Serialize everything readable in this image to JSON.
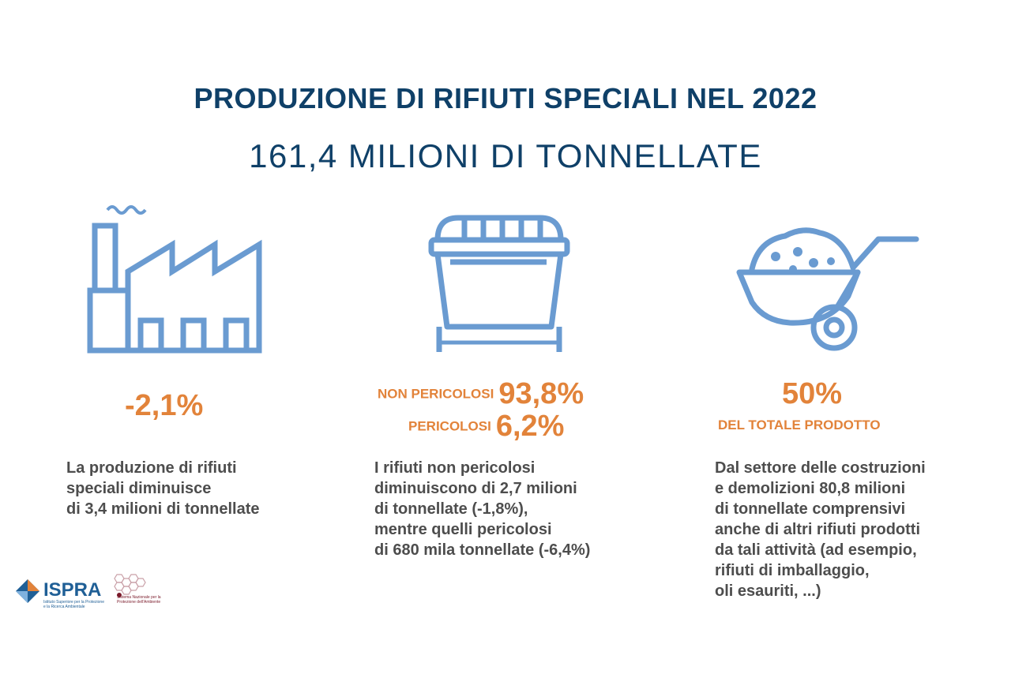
{
  "header": {
    "title": "PRODUZIONE DI RIFIUTI SPECIALI NEL 2022",
    "subtitle": "161,4 MILIONI DI TONNELLATE"
  },
  "colors": {
    "navy": "#0f4068",
    "icon_blue": "#6a9bd1",
    "accent_orange": "#e2833a",
    "text_gray": "#4d4d4d"
  },
  "column1": {
    "icon": "factory-icon",
    "stat": "-2,1%",
    "description": [
      "La produzione di rifiuti",
      "speciali diminuisce",
      "di 3,4 milioni di tonnellate"
    ]
  },
  "column2": {
    "icon": "waste-bin-icon",
    "row1_label": "NON PERICOLOSI",
    "row1_value": "93,8%",
    "row2_label": "PERICOLOSI",
    "row2_value": "6,2%",
    "description": [
      "I rifiuti non pericolosi",
      "diminuiscono di 2,7 milioni",
      "di tonnellate (-1,8%),",
      "mentre quelli pericolosi",
      "di 680 mila tonnellate (-6,4%)"
    ]
  },
  "column3": {
    "icon": "wheelbarrow-icon",
    "stat": "50%",
    "stat_sub": "DEL TOTALE PRODOTTO",
    "description": [
      "Dal settore delle costruzioni",
      "e demolizioni 80,8 milioni",
      "di tonnellate comprensivi",
      "anche di altri rifiuti prodotti",
      "da tali attività (ad esempio,",
      "rifiuti di imballaggio,",
      "oli esauriti, ...)"
    ]
  },
  "logos": {
    "ispra_name": "ISPRA",
    "ispra_tagline": "Istituto Superiore per la Protezione e la Ricerca Ambientale",
    "snpa_tagline": "Sistema Nazionale per la Protezione dell'Ambiente"
  }
}
